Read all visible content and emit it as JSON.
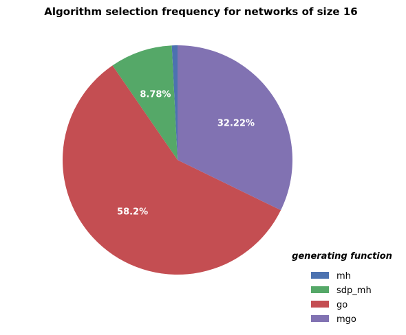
{
  "chart_data": {
    "type": "pie",
    "title": "Algorithm selection frequency for networks of size 16",
    "legend_title": "generating function",
    "legend_position": "bottom-right",
    "start_angle_deg": 90,
    "direction": "counterclockwise",
    "slices": [
      {
        "label": "mh",
        "value": 0.8,
        "pct_label": "",
        "color": "#4c72b0"
      },
      {
        "label": "sdp_mh",
        "value": 8.78,
        "pct_label": "8.78%",
        "color": "#55a868"
      },
      {
        "label": "go",
        "value": 58.2,
        "pct_label": "58.2%",
        "color": "#c44e52"
      },
      {
        "label": "mgo",
        "value": 32.22,
        "pct_label": "32.22%",
        "color": "#8172b2"
      }
    ]
  }
}
